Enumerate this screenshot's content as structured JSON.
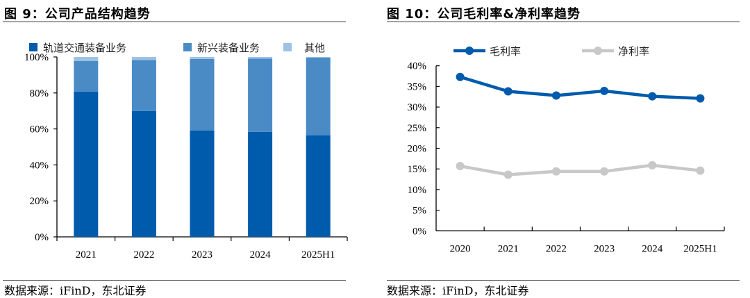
{
  "figures": [
    {
      "title": "图 9：公司产品结构趋势",
      "source": "数据来源：iFinD，东北证券"
    },
    {
      "title": "图 10：公司毛利率&净利率趋势",
      "source": "数据来源：iFinD，东北证券"
    }
  ],
  "chart_data": [
    {
      "type": "bar",
      "stacked": true,
      "title": "公司产品结构趋势",
      "xlabel": "",
      "ylabel": "",
      "categories": [
        "2021",
        "2022",
        "2023",
        "2024",
        "2025H1"
      ],
      "series": [
        {
          "name": "轨道交通装备业务",
          "color": "#005BAC",
          "values": [
            80.8,
            70.0,
            59.1,
            58.4,
            56.5
          ]
        },
        {
          "name": "新兴装备业务",
          "color": "#4A8BC6",
          "values": [
            17.0,
            28.3,
            39.8,
            40.7,
            43.1
          ]
        },
        {
          "name": "其他",
          "color": "#9CC3E6",
          "values": [
            2.2,
            1.7,
            1.1,
            0.9,
            0.4
          ]
        }
      ],
      "ylim": [
        0,
        100
      ],
      "yticks": [
        "0%",
        "20%",
        "40%",
        "60%",
        "80%",
        "100%"
      ],
      "ytick_values": [
        0,
        20,
        40,
        60,
        80,
        100
      ],
      "grid": false,
      "legend_position": "top"
    },
    {
      "type": "line",
      "title": "公司毛利率&净利率趋势",
      "xlabel": "",
      "ylabel": "",
      "categories": [
        "2020",
        "2021",
        "2022",
        "2023",
        "2024",
        "2025H1"
      ],
      "series": [
        {
          "name": "毛利率",
          "color": "#005BAC",
          "values": [
            37.3,
            33.8,
            32.8,
            33.9,
            32.6,
            32.1
          ]
        },
        {
          "name": "净利率",
          "color": "#C8C8C8",
          "values": [
            15.7,
            13.6,
            14.4,
            14.4,
            15.9,
            14.6
          ]
        }
      ],
      "ylim": [
        0,
        40
      ],
      "yticks": [
        "0%",
        "5%",
        "10%",
        "15%",
        "20%",
        "25%",
        "30%",
        "35%",
        "40%"
      ],
      "ytick_values": [
        0,
        5,
        10,
        15,
        20,
        25,
        30,
        35,
        40
      ],
      "grid": false,
      "legend_position": "top"
    }
  ]
}
